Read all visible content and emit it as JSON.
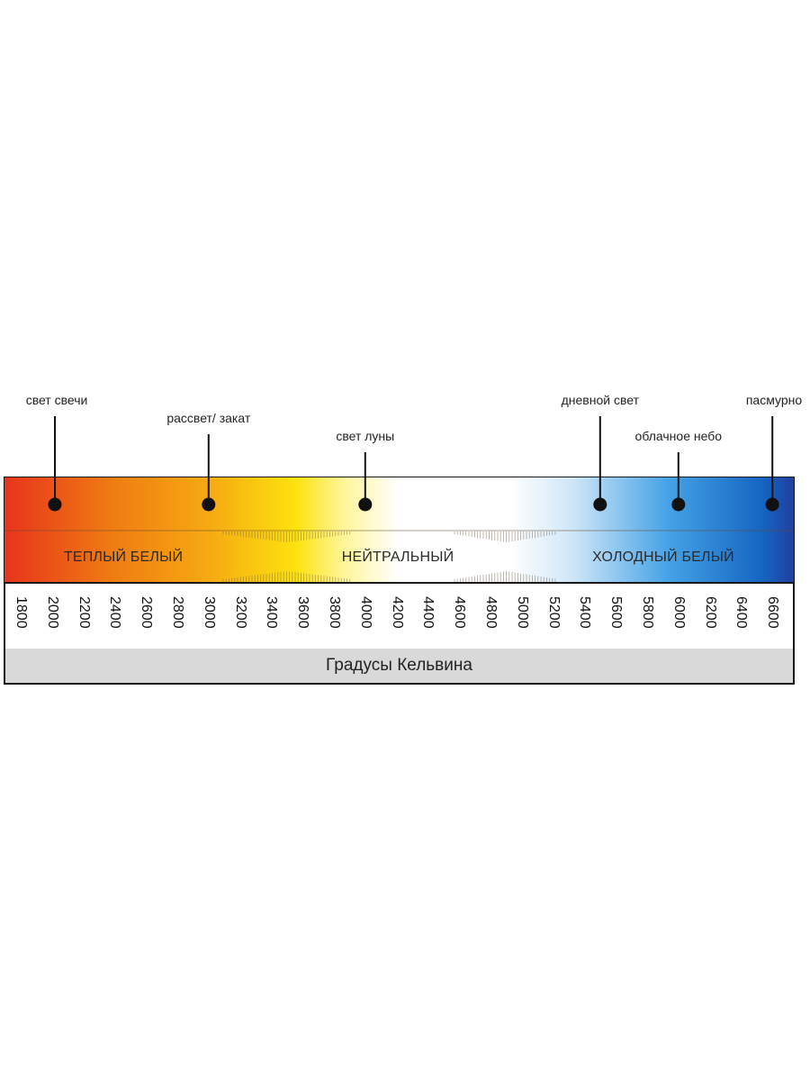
{
  "markers": [
    {
      "label": "свет свечи",
      "value": 1800
    },
    {
      "label": "рассвет/ закат",
      "value": 3000
    },
    {
      "label": "свет луны",
      "value": 4000
    },
    {
      "label": "дневной свет",
      "value": 5500
    },
    {
      "label": "облачное небо",
      "value": 6000
    },
    {
      "label": "пасмурно",
      "value": 6600
    }
  ],
  "zones": [
    {
      "label": "ТЕПЛЫЙ БЕЛЫЙ"
    },
    {
      "label": "НЕЙТРАЛЬНЫЙ"
    },
    {
      "label": "ХОЛОДНЫЙ БЕЛЫЙ"
    }
  ],
  "scale": [
    1800,
    2000,
    2200,
    2400,
    2600,
    2800,
    3000,
    3200,
    3400,
    3600,
    3800,
    4000,
    4200,
    4400,
    4600,
    4800,
    5000,
    5200,
    5400,
    5600,
    5800,
    6000,
    6200,
    6400,
    6600
  ],
  "scale_labels": [
    "1800",
    "2000",
    "2200",
    "2400",
    "2600",
    "2800",
    "3000",
    "3200",
    "3400",
    "3600",
    "3800",
    "4000",
    "4200",
    "4400",
    "4600",
    "4800",
    "5000",
    "5200",
    "5400",
    "5600",
    "5800",
    "6000",
    "6200",
    "6400",
    "6600"
  ],
  "footer_label": "Градусы Кельвина",
  "colors": {
    "gradient": [
      "#e8341c",
      "#f07d12",
      "#f6aa12",
      "#fde20f",
      "#fff59a",
      "#ffffff",
      "#ffffff",
      "#ffffff",
      "#cfe6f8",
      "#46a3e6",
      "#1565c2",
      "#2040a0"
    ],
    "footer": "#d9d9d9",
    "frame": "#1a1a1a"
  }
}
